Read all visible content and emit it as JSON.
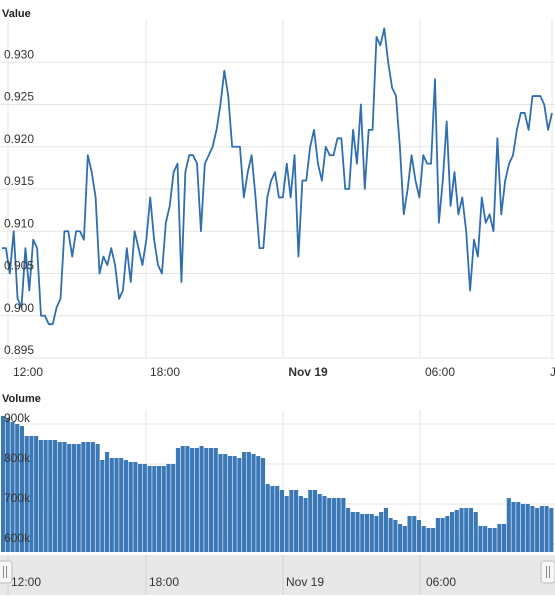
{
  "panels": {
    "value_title": "Value",
    "volume_title": "Volume"
  },
  "credit": "",
  "colors": {
    "line": "#2f6fb0",
    "bar": "#3a78b8",
    "grid": "#e6e6e6",
    "navigator": "#e8e8e8"
  },
  "chart_data": [
    {
      "type": "line",
      "title": "Value",
      "x_tick_labels": [
        "12:00",
        "18:00",
        "Nov 19",
        "06:00",
        "J"
      ],
      "y_tick_labels": [
        "0.895",
        "0.900",
        "0.905",
        "0.910",
        "0.915",
        "0.920",
        "0.925",
        "0.930"
      ],
      "ylim": [
        0.895,
        0.935
      ],
      "grid": true,
      "series": [
        {
          "values": [
            0.908,
            0.908,
            0.905,
            0.91,
            0.902,
            0.901,
            0.908,
            0.903,
            0.909,
            0.908,
            0.9,
            0.9,
            0.899,
            0.899,
            0.901,
            0.902,
            0.91,
            0.91,
            0.907,
            0.91,
            0.91,
            0.909,
            0.919,
            0.917,
            0.914,
            0.905,
            0.907,
            0.906,
            0.908,
            0.906,
            0.902,
            0.903,
            0.908,
            0.904,
            0.91,
            0.908,
            0.906,
            0.909,
            0.914,
            0.909,
            0.906,
            0.905,
            0.911,
            0.913,
            0.917,
            0.918,
            0.904,
            0.917,
            0.919,
            0.919,
            0.918,
            0.91,
            0.918,
            0.919,
            0.92,
            0.922,
            0.925,
            0.929,
            0.926,
            0.92,
            0.92,
            0.92,
            0.914,
            0.917,
            0.919,
            0.914,
            0.908,
            0.908,
            0.914,
            0.916,
            0.917,
            0.914,
            0.914,
            0.918,
            0.914,
            0.919,
            0.907,
            0.916,
            0.916,
            0.92,
            0.922,
            0.918,
            0.916,
            0.92,
            0.919,
            0.919,
            0.921,
            0.921,
            0.915,
            0.915,
            0.922,
            0.918,
            0.925,
            0.915,
            0.922,
            0.922,
            0.933,
            0.932,
            0.934,
            0.93,
            0.927,
            0.926,
            0.92,
            0.912,
            0.915,
            0.919,
            0.916,
            0.914,
            0.919,
            0.918,
            0.918,
            0.928,
            0.911,
            0.916,
            0.923,
            0.913,
            0.917,
            0.912,
            0.914,
            0.91,
            0.903,
            0.909,
            0.907,
            0.914,
            0.911,
            0.912,
            0.91,
            0.921,
            0.912,
            0.916,
            0.918,
            0.919,
            0.922,
            0.924,
            0.924,
            0.922,
            0.926,
            0.926,
            0.926,
            0.925,
            0.922,
            0.924
          ]
        }
      ]
    },
    {
      "type": "bar",
      "title": "Volume",
      "x_tick_labels": [
        "12:00",
        "18:00",
        "Nov 19",
        "06:00"
      ],
      "y_tick_labels": [
        "600k",
        "700k",
        "800k",
        "900k"
      ],
      "ylim": [
        580000,
        935000
      ],
      "grid": true,
      "series": [
        {
          "values": [
            920000,
            915000,
            905000,
            900000,
            895000,
            870000,
            870000,
            870000,
            860000,
            860000,
            860000,
            860000,
            855000,
            855000,
            850000,
            850000,
            850000,
            855000,
            855000,
            855000,
            850000,
            810000,
            830000,
            815000,
            815000,
            815000,
            810000,
            805000,
            805000,
            800000,
            800000,
            795000,
            795000,
            795000,
            795000,
            800000,
            800000,
            840000,
            845000,
            845000,
            840000,
            840000,
            845000,
            840000,
            840000,
            840000,
            825000,
            825000,
            820000,
            820000,
            815000,
            830000,
            830000,
            825000,
            820000,
            815000,
            750000,
            745000,
            745000,
            735000,
            720000,
            735000,
            735000,
            720000,
            715000,
            735000,
            735000,
            725000,
            720000,
            715000,
            715000,
            715000,
            715000,
            690000,
            680000,
            680000,
            675000,
            675000,
            675000,
            670000,
            680000,
            690000,
            665000,
            660000,
            650000,
            645000,
            670000,
            670000,
            660000,
            645000,
            640000,
            640000,
            665000,
            665000,
            670000,
            680000,
            685000,
            690000,
            690000,
            690000,
            680000,
            645000,
            645000,
            640000,
            640000,
            650000,
            650000,
            715000,
            705000,
            705000,
            700000,
            700000,
            695000,
            690000,
            695000,
            695000,
            690000
          ]
        }
      ]
    }
  ]
}
